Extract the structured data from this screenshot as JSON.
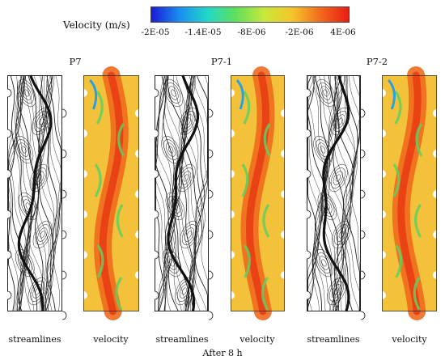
{
  "legend": {
    "title": "Velocity (m/s)",
    "ticks": [
      "-2E-05",
      "-1.4E-05",
      "-8E-06",
      "-2E-06",
      "4E-06"
    ],
    "gradient": [
      "#1a1ad8",
      "#1a8ef0",
      "#22d8c8",
      "#5fe05a",
      "#c8e83a",
      "#f5c52a",
      "#f26a1c",
      "#e81c14"
    ]
  },
  "groups": [
    {
      "title": "P7",
      "captions": [
        "streamlines",
        "velocity"
      ]
    },
    {
      "title": "P7-1",
      "captions": [
        "streamlines",
        "velocity"
      ]
    },
    {
      "title": "P7-2",
      "captions": [
        "streamlines",
        "velocity"
      ]
    }
  ],
  "footer": "After 8 h",
  "field_colors": {
    "background": "#f3c23a",
    "core": "#ef6a1e",
    "hot": "#e83a14",
    "shear": "#5fd060",
    "edge": "#2aa0e0"
  }
}
